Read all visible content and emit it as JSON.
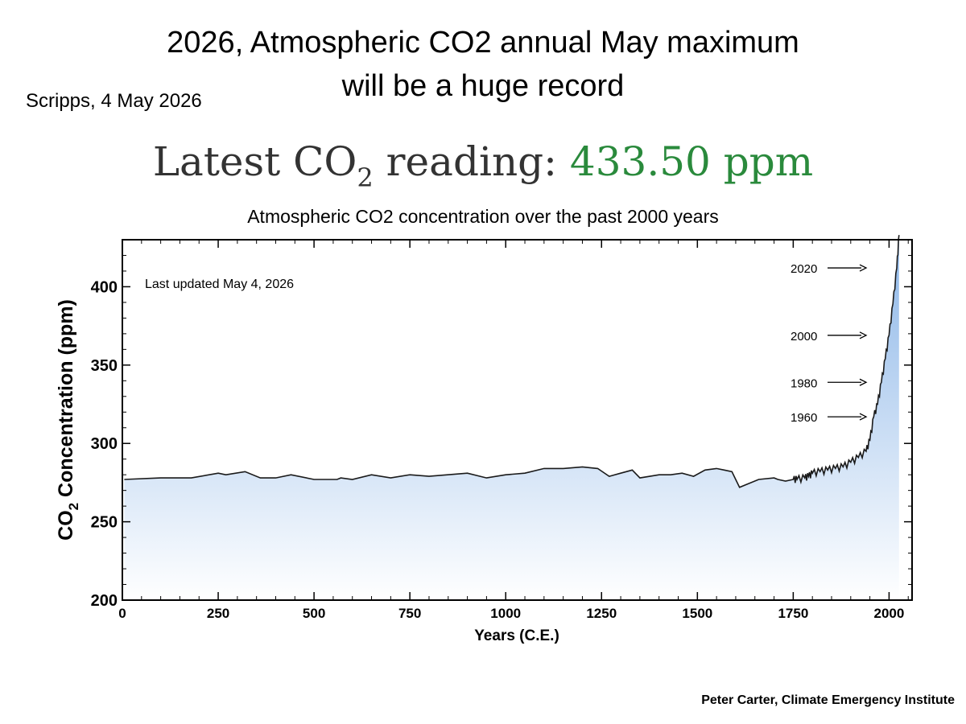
{
  "slide": {
    "title_line1": "2026, Atmospheric CO2 annual May maximum",
    "title_line2": "will be a huge record",
    "source_note": "Scripps, 4 May 2026",
    "reading_label": "Latest CO",
    "reading_label_sub": "2",
    "reading_label_suffix": " reading: ",
    "reading_value": "433.50 ppm",
    "chart_heading": "Atmospheric CO2 concentration over the past 2000 years",
    "credit": "Peter Carter, Climate Emergency Institute"
  },
  "colors": {
    "reading_value": "#2a8a3c",
    "fill_top": "#8cb6e8",
    "fill_bottom": "#ffffff",
    "line": "#1a1a1a"
  },
  "chart_data": {
    "type": "area",
    "ylabel_main": "CO",
    "ylabel_sub": "2",
    "ylabel_suffix": " Concentration (ppm)",
    "xlabel": "Years (C.E.)",
    "xlim": [
      0,
      2060
    ],
    "ylim": [
      200,
      430
    ],
    "xticks": [
      0,
      250,
      500,
      750,
      1000,
      1250,
      1500,
      1750,
      2000
    ],
    "yticks": [
      200,
      250,
      300,
      350,
      400
    ],
    "annotation": "Last updated May 4, 2026",
    "arrow_labels": [
      {
        "label": "2020",
        "y": 412
      },
      {
        "label": "2000",
        "y": 369
      },
      {
        "label": "1980",
        "y": 339
      },
      {
        "label": "1960",
        "y": 317
      }
    ],
    "x": [
      5,
      100,
      180,
      250,
      270,
      320,
      360,
      400,
      440,
      500,
      560,
      570,
      600,
      650,
      700,
      750,
      800,
      900,
      950,
      1000,
      1050,
      1100,
      1150,
      1200,
      1240,
      1270,
      1300,
      1330,
      1350,
      1400,
      1430,
      1460,
      1490,
      1520,
      1550,
      1570,
      1590,
      1600,
      1610,
      1630,
      1660,
      1700,
      1710,
      1730,
      1750,
      1760,
      1780,
      1790,
      1800,
      1820,
      1840,
      1860,
      1880,
      1900,
      1920,
      1940,
      1950,
      1960,
      1970,
      1980,
      1990,
      2000,
      2010,
      2020,
      2026
    ],
    "y": [
      277,
      278,
      278,
      281,
      280,
      282,
      278,
      278,
      280,
      277,
      277,
      278,
      277,
      280,
      278,
      280,
      279,
      281,
      278,
      280,
      281,
      284,
      284,
      285,
      284,
      279,
      281,
      283,
      278,
      280,
      280,
      281,
      279,
      283,
      284,
      283,
      282,
      277,
      272,
      274,
      277,
      278,
      277,
      276,
      277,
      277,
      278,
      279,
      281,
      282,
      283,
      284,
      285,
      288,
      291,
      295,
      302,
      317,
      325,
      339,
      354,
      369,
      389,
      412,
      433
    ]
  }
}
